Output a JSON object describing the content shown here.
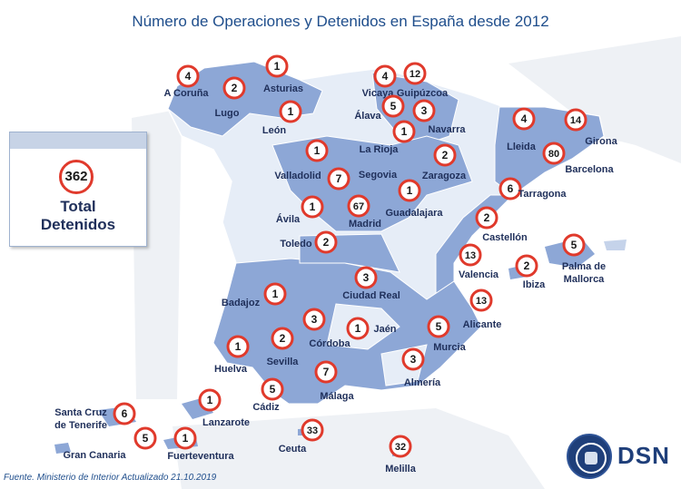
{
  "title": "Número de Operaciones y Detenidos en España desde 2012",
  "total": {
    "value": "362",
    "label_line1": "Total",
    "label_line2": "Detenidos"
  },
  "source": "Fuente. Ministerio de Interior   Actualizado 21.10.2019",
  "logo": {
    "text": "DSN",
    "icon": "dsn-seal-icon"
  },
  "colors": {
    "badge_border": "#e03a2c",
    "region_dark": "#8da7d6",
    "region_light": "#e6edf7",
    "label": "#1f2f5a",
    "title": "#1f4e8c"
  },
  "regions": [
    {
      "name": "A Coruña",
      "count": "4"
    },
    {
      "name": "Lugo",
      "count": "2"
    },
    {
      "name": "Asturias",
      "count": "1"
    },
    {
      "name": "León",
      "count": "1"
    },
    {
      "name": "Vicaya",
      "count": "4"
    },
    {
      "name": "Guipúzcoa",
      "count": "12"
    },
    {
      "name": "Álava",
      "count": "5"
    },
    {
      "name": "Navarra",
      "count": "3"
    },
    {
      "name": "La Rioja",
      "count": "1"
    },
    {
      "name": "Lleida",
      "count": "4"
    },
    {
      "name": "Girona",
      "count": "14"
    },
    {
      "name": "Barcelona",
      "count": "80"
    },
    {
      "name": "Tarragona",
      "count": "6"
    },
    {
      "name": "Valladolid",
      "count": "1"
    },
    {
      "name": "Segovia",
      "count": "7"
    },
    {
      "name": "Zaragoza",
      "count": "2"
    },
    {
      "name": "Ávila",
      "count": "1"
    },
    {
      "name": "Madrid",
      "count": "67"
    },
    {
      "name": "Guadalajara",
      "count": "1"
    },
    {
      "name": "Toledo",
      "count": "2"
    },
    {
      "name": "Castellón",
      "count": "2"
    },
    {
      "name": "Valencia",
      "count": "13"
    },
    {
      "name": "Palma de\nMallorca",
      "count": "5"
    },
    {
      "name": "Ibiza",
      "count": "2"
    },
    {
      "name": "Ciudad Real",
      "count": "3"
    },
    {
      "name": "Badajoz",
      "count": "1"
    },
    {
      "name": "Alicante",
      "count": "13"
    },
    {
      "name": "Córdoba",
      "count": "3"
    },
    {
      "name": "Jaén",
      "count": "1"
    },
    {
      "name": "Sevilla",
      "count": "2"
    },
    {
      "name": "Huelva",
      "count": "1"
    },
    {
      "name": "Murcia",
      "count": "5"
    },
    {
      "name": "Almería",
      "count": "3"
    },
    {
      "name": "Málaga",
      "count": "7"
    },
    {
      "name": "Cádiz",
      "count": "5"
    },
    {
      "name": "Santa Cruz\nde Tenerife",
      "count": "6"
    },
    {
      "name": "Lanzarote",
      "count": "1"
    },
    {
      "name": "Gran Canaria",
      "count": "5"
    },
    {
      "name": "Fuerteventura",
      "count": "1"
    },
    {
      "name": "Ceuta",
      "count": "33"
    },
    {
      "name": "Melilla",
      "count": "32"
    }
  ]
}
